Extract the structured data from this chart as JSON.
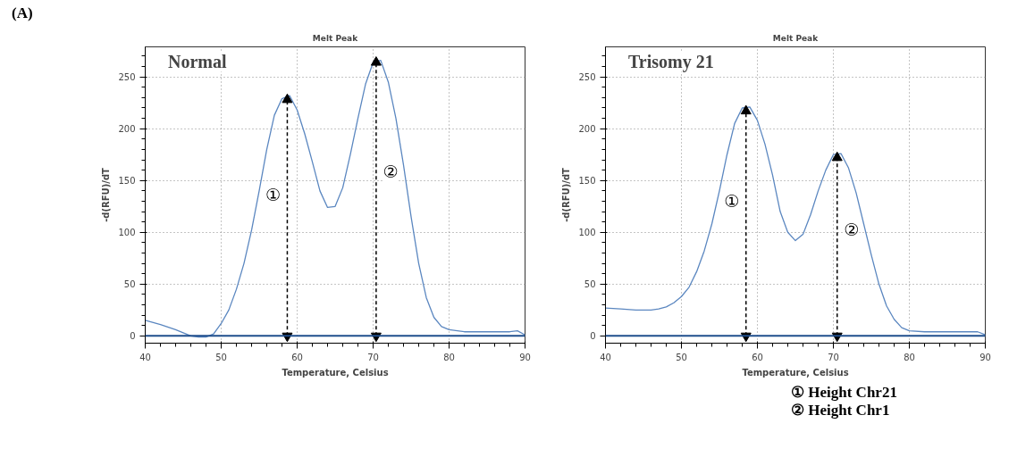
{
  "chart_data": [
    {
      "type": "line",
      "title": "Melt Peak",
      "subtitle": "Normal",
      "xlabel": "Temperature, Celsius",
      "ylabel": "-d(RFU)/dT",
      "x": [
        40,
        42,
        44,
        46,
        47,
        48,
        49,
        50,
        51,
        52,
        53,
        54,
        55,
        56,
        57,
        58,
        59,
        60,
        61,
        62,
        63,
        64,
        65,
        66,
        67,
        68,
        69,
        70,
        71,
        72,
        73,
        74,
        75,
        76,
        77,
        78,
        79,
        80,
        82,
        85,
        88,
        89,
        90
      ],
      "series": [
        {
          "color": "#5b87c0",
          "values": [
            15,
            11,
            6,
            0,
            -1,
            -1,
            2,
            12,
            25,
            45,
            70,
            102,
            140,
            180,
            213,
            229,
            232,
            218,
            195,
            168,
            140,
            124,
            125,
            143,
            175,
            210,
            243,
            264,
            266,
            245,
            210,
            165,
            115,
            70,
            37,
            18,
            9,
            6,
            4,
            4,
            4,
            5,
            1
          ]
        },
        {
          "name": "①",
          "color": "#000000",
          "x": [
            58.7,
            58.7
          ],
          "values": [
            0,
            228
          ],
          "line_style": "dashed",
          "marker": "triangle"
        },
        {
          "name": "②",
          "color": "#000000",
          "x": [
            70.4,
            70.4
          ],
          "values": [
            0,
            264
          ],
          "line_style": "dashed",
          "marker": "triangle"
        }
      ],
      "xlim": [
        40,
        90
      ],
      "xticks": [
        40,
        50,
        60,
        70,
        80,
        90
      ],
      "ylim": [
        -7,
        279
      ],
      "yticks": [
        0,
        50,
        100,
        150,
        200,
        250
      ],
      "grid": true,
      "marker": "none",
      "line_style": "solid",
      "ref_lines": [
        {
          "axis": "y",
          "value": 0,
          "color": "#1f4e8c",
          "line_style": "solid"
        }
      ],
      "annotations": [
        "(A)"
      ]
    },
    {
      "type": "line",
      "title": "Melt Peak",
      "subtitle": "Trisomy 21",
      "xlabel": "Temperature, Celsius",
      "ylabel": "-d(RFU)/dT",
      "x": [
        40,
        42,
        44,
        46,
        47,
        48,
        49,
        50,
        51,
        52,
        53,
        54,
        55,
        56,
        57,
        58,
        59,
        60,
        61,
        62,
        63,
        64,
        65,
        66,
        67,
        68,
        69,
        70,
        71,
        72,
        73,
        74,
        75,
        76,
        77,
        78,
        79,
        80,
        82,
        85,
        88,
        89,
        90
      ],
      "series": [
        {
          "color": "#5b87c0",
          "values": [
            27,
            26,
            25,
            25,
            26,
            28,
            32,
            38,
            47,
            62,
            82,
            108,
            140,
            175,
            205,
            220,
            221,
            208,
            185,
            155,
            120,
            100,
            92,
            98,
            117,
            140,
            160,
            175,
            176,
            162,
            138,
            108,
            78,
            50,
            29,
            16,
            8,
            5,
            4,
            4,
            4,
            4,
            1
          ]
        },
        {
          "name": "①",
          "color": "#000000",
          "x": [
            58.5,
            58.5
          ],
          "values": [
            0,
            217
          ],
          "line_style": "dashed",
          "marker": "triangle"
        },
        {
          "name": "②",
          "color": "#000000",
          "x": [
            70.5,
            70.5
          ],
          "values": [
            0,
            172
          ],
          "line_style": "dashed",
          "marker": "triangle"
        }
      ],
      "xlim": [
        40,
        90
      ],
      "xticks": [
        40,
        50,
        60,
        70,
        80,
        90
      ],
      "ylim": [
        -7,
        279
      ],
      "yticks": [
        0,
        50,
        100,
        150,
        200,
        250
      ],
      "grid": true,
      "marker": "none",
      "line_style": "solid",
      "ref_lines": [
        {
          "axis": "y",
          "value": 0,
          "color": "#1f4e8c",
          "line_style": "solid"
        }
      ],
      "annotations": [
        "① Height Chr21",
        "② Height Chr1"
      ]
    }
  ]
}
